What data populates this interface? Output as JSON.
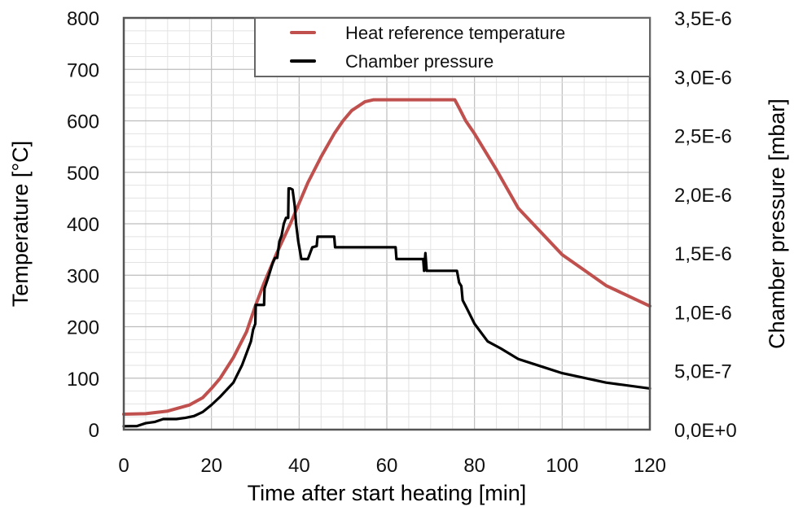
{
  "chart_data": {
    "type": "line",
    "xlabel": "Time after start heating [min]",
    "ylabel": "Temperature [°C]",
    "y2label": "Chamber pressure [mbar]",
    "xlim": [
      0,
      120
    ],
    "ylim": [
      0,
      800
    ],
    "y2lim": [
      0,
      3.5e-06
    ],
    "grid": true,
    "legend_position": "top-right",
    "x_ticks": [
      "0",
      "20",
      "40",
      "60",
      "80",
      "100",
      "120"
    ],
    "y_ticks": [
      "0",
      "100",
      "200",
      "300",
      "400",
      "500",
      "600",
      "700",
      "800"
    ],
    "y2_ticks": [
      "0,0E+0",
      "5,0E-7",
      "1,0E-6",
      "1,5E-6",
      "2,0E-6",
      "2,5E-6",
      "3,0E-6",
      "3,5E-6"
    ],
    "series": [
      {
        "name": "Heat reference temperature",
        "color": "#c0504d",
        "axis": "left",
        "x": [
          0,
          5,
          10,
          15,
          18,
          20,
          22,
          25,
          28,
          30,
          32,
          35,
          38,
          40,
          42,
          45,
          48,
          50,
          52,
          55,
          57,
          60,
          65,
          70,
          74,
          75.5,
          76.5,
          78,
          80,
          85,
          90,
          95,
          100,
          105,
          110,
          115,
          120
        ],
        "values": [
          30,
          31,
          36,
          48,
          62,
          80,
          100,
          140,
          190,
          240,
          285,
          345,
          400,
          440,
          480,
          530,
          575,
          600,
          620,
          637,
          641,
          641,
          641,
          641,
          641,
          641,
          625,
          600,
          575,
          505,
          430,
          385,
          340,
          310,
          280,
          260,
          240
        ]
      },
      {
        "name": "Chamber pressure",
        "color": "#000000",
        "axis": "right",
        "x": [
          0,
          3,
          5,
          7,
          9,
          12,
          14,
          16,
          18,
          20,
          22,
          25,
          27,
          28,
          29,
          29.5,
          30,
          30.1,
          31,
          32,
          32.1,
          33,
          34,
          34.5,
          35,
          35.5,
          36,
          36.5,
          37,
          37.5,
          37.6,
          38,
          38.5,
          39,
          39.3,
          39.8,
          40.5,
          41,
          42,
          43,
          44,
          44.2,
          46,
          48,
          48.2,
          52,
          62,
          62.2,
          68.3,
          68.5,
          68.8,
          69.1,
          76,
          76.5,
          77,
          77.3,
          78,
          80,
          83,
          86,
          90,
          95,
          100,
          110,
          120
        ],
        "values": [
          2.9e-08,
          3e-08,
          5.5e-08,
          6.5e-08,
          9e-08,
          9e-08,
          1e-07,
          1.15e-07,
          1.5e-07,
          2.1e-07,
          2.8e-07,
          4e-07,
          5.5e-07,
          6.5e-07,
          7.5e-07,
          8.5e-07,
          9e-07,
          1.06e-06,
          1.06e-06,
          1.06e-06,
          1.2e-06,
          1.3e-06,
          1.42e-06,
          1.46e-06,
          1.46e-06,
          1.6e-06,
          1.65e-06,
          1.75e-06,
          1.8e-06,
          1.8e-06,
          2.05e-06,
          2.05e-06,
          2.04e-06,
          1.9e-06,
          1.75e-06,
          1.6e-06,
          1.45e-06,
          1.45e-06,
          1.45e-06,
          1.55e-06,
          1.56e-06,
          1.64e-06,
          1.64e-06,
          1.64e-06,
          1.55e-06,
          1.55e-06,
          1.55e-06,
          1.45e-06,
          1.45e-06,
          1.35e-06,
          1.5e-06,
          1.35e-06,
          1.35e-06,
          1.25e-06,
          1.22e-06,
          1.1e-06,
          1.05e-06,
          9e-07,
          7.5e-07,
          6.9e-07,
          6e-07,
          5.4e-07,
          4.8e-07,
          4e-07,
          3.5e-07
        ]
      }
    ]
  }
}
